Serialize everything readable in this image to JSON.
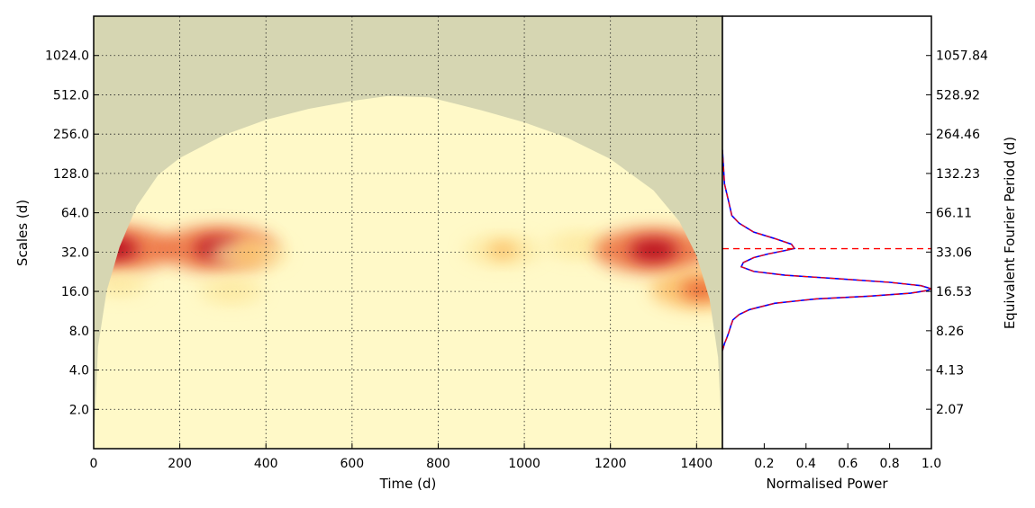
{
  "chart_data": [
    {
      "type": "heatmap",
      "title": "",
      "xlabel": "Time (d)",
      "ylabel": "Scales (d)",
      "xlim": [
        0,
        1460
      ],
      "x_ticks": [
        0,
        200,
        400,
        600,
        800,
        1000,
        1200,
        1400
      ],
      "x_tick_labels": [
        "0",
        "200",
        "400",
        "600",
        "800",
        "1000",
        "1200",
        "1400"
      ],
      "yscale": "log2",
      "ylim": [
        1,
        2048
      ],
      "y_ticks": [
        2,
        4,
        8,
        16,
        32,
        64,
        128,
        256,
        512,
        1024
      ],
      "y_tick_labels": [
        "2.0",
        "4.0",
        "8.0",
        "16.0",
        "32.0",
        "64.0",
        "128.0",
        "256.0",
        "512.0",
        "1024.0"
      ],
      "grid": true,
      "colormap": [
        "#fff9c8",
        "#fde9a0",
        "#fbb55a",
        "#ea5a2a",
        "#b3001e"
      ],
      "cone_of_influence_color": "#d6d6b2",
      "cone_of_influence": {
        "time": [
          0,
          10,
          30,
          60,
          100,
          150,
          200,
          300,
          400,
          500,
          600,
          680,
          700,
          780,
          900,
          1000,
          1100,
          1200,
          1300,
          1360,
          1400,
          1430,
          1450,
          1460
        ],
        "scale": [
          1,
          6,
          16,
          35,
          72,
          125,
          168,
          250,
          330,
          400,
          460,
          500,
          500,
          490,
          390,
          315,
          240,
          165,
          95,
          55,
          30,
          14,
          5,
          1
        ]
      },
      "hotspots": [
        {
          "time": 45,
          "scale": 34,
          "intensity": 1.0
        },
        {
          "time": 290,
          "scale": 34,
          "intensity": 0.95
        },
        {
          "time": 360,
          "scale": 31,
          "intensity": 0.5
        },
        {
          "time": 950,
          "scale": 33,
          "intensity": 0.5
        },
        {
          "time": 1130,
          "scale": 36,
          "intensity": 0.4
        },
        {
          "time": 1300,
          "scale": 33,
          "intensity": 0.95
        },
        {
          "time": 1410,
          "scale": 16.5,
          "intensity": 0.75
        },
        {
          "time": 320,
          "scale": 16,
          "intensity": 0.35
        },
        {
          "time": 60,
          "scale": 18,
          "intensity": 0.25
        }
      ]
    },
    {
      "type": "line",
      "title": "",
      "xlabel": "Normalised Power",
      "ylabel": "Equivalent Fourier Period (d)",
      "xlim": [
        0,
        1.0
      ],
      "x_ticks": [
        0.2,
        0.4,
        0.6,
        0.8,
        1.0
      ],
      "x_tick_labels": [
        "0.2",
        "0.4",
        "0.6",
        "0.8",
        "1.0"
      ],
      "yscale": "log2",
      "ylim": [
        1.033,
        2116
      ],
      "y_ticks": [
        2.07,
        4.13,
        8.26,
        16.53,
        33.06,
        66.11,
        132.23,
        264.46,
        528.92,
        1057.84
      ],
      "y_tick_labels": [
        "2.07",
        "4.13",
        "8.26",
        "16.53",
        "33.06",
        "66.11",
        "132.23",
        "264.46",
        "528.92",
        "1057.84"
      ],
      "grid": false,
      "peak_period": 35.1,
      "series": [
        {
          "color": "#0000ff",
          "style": "solid",
          "x": [
            0,
            0,
            0.005,
            0.01,
            0.02,
            0.03,
            0.04,
            0.05,
            0.08,
            0.13,
            0.25,
            0.45,
            0.7,
            0.9,
            0.98,
            1.0,
            0.95,
            0.8,
            0.55,
            0.3,
            0.15,
            0.09,
            0.1,
            0.15,
            0.22,
            0.3,
            0.345,
            0.33,
            0.25,
            0.15,
            0.08,
            0.045,
            0.03,
            0.01,
            0
          ],
          "y": [
            12,
            5.8,
            6.2,
            6.6,
            7.2,
            8.0,
            9.0,
            10.0,
            11.0,
            12.0,
            13.4,
            14.5,
            15.2,
            16.0,
            16.8,
            17.3,
            18.3,
            19.4,
            20.7,
            22.0,
            23.5,
            25.5,
            27.5,
            30.0,
            32.0,
            34.0,
            35.2,
            38.0,
            42.0,
            47.0,
            55.0,
            63.0,
            80.0,
            110.0,
            200.0
          ]
        },
        {
          "color": "#ff0000",
          "style": "dashed",
          "x": [
            0,
            0,
            0.005,
            0.01,
            0.02,
            0.03,
            0.04,
            0.05,
            0.08,
            0.13,
            0.25,
            0.45,
            0.7,
            0.9,
            0.98,
            1.0,
            0.95,
            0.8,
            0.55,
            0.3,
            0.15,
            0.09,
            0.1,
            0.15,
            0.22,
            0.3,
            0.345,
            0.33,
            0.25,
            0.15,
            0.08,
            0.045,
            0.03,
            0.01,
            0
          ],
          "y": [
            12,
            5.8,
            6.2,
            6.6,
            7.2,
            8.0,
            9.0,
            10.0,
            11.0,
            12.0,
            13.4,
            14.5,
            15.2,
            16.0,
            16.8,
            17.3,
            18.3,
            19.4,
            20.7,
            22.0,
            23.5,
            25.5,
            27.5,
            30.0,
            32.0,
            34.0,
            35.2,
            38.0,
            42.0,
            47.0,
            55.0,
            63.0,
            80.0,
            110.0,
            200.0
          ]
        }
      ]
    }
  ]
}
